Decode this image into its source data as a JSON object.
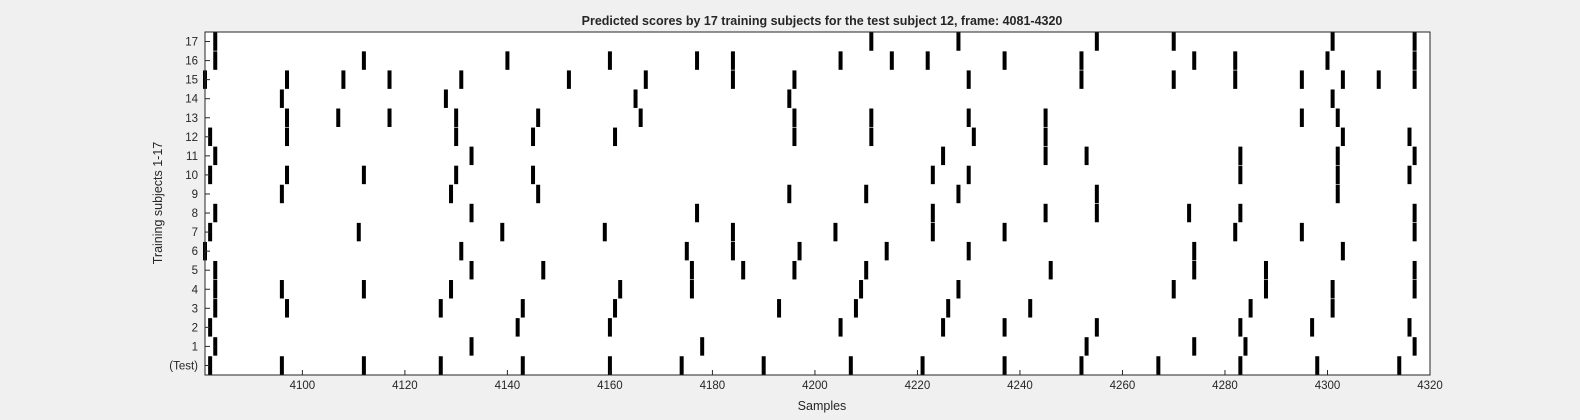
{
  "chart_data": {
    "type": "event_raster",
    "title": "Predicted scores by 17 training subjects for the test subject 12, frame: 4081-4320",
    "xlabel": "Samples",
    "ylabel": "Training subjects 1-17",
    "xlim": [
      4081,
      4320
    ],
    "xticks": [
      "4100",
      "4120",
      "4140",
      "4160",
      "4180",
      "4200",
      "4220",
      "4240",
      "4260",
      "4280",
      "4300",
      "4320"
    ],
    "row_labels": [
      "(Test)",
      "1",
      "2",
      "3",
      "4",
      "5",
      "6",
      "7",
      "8",
      "9",
      "10",
      "11",
      "12",
      "13",
      "14",
      "15",
      "16",
      "17"
    ],
    "grid": false,
    "series": [
      {
        "name": "(Test)",
        "x": [
          4082,
          4096,
          4112,
          4127,
          4143,
          4160,
          4174,
          4190,
          4207,
          4221,
          4237,
          4252,
          4267,
          4283,
          4298,
          4314
        ]
      },
      {
        "name": "1",
        "x": [
          4083,
          4133,
          4178,
          4253,
          4274,
          4284,
          4317
        ]
      },
      {
        "name": "2",
        "x": [
          4082,
          4142,
          4160,
          4205,
          4225,
          4237,
          4255,
          4283,
          4297,
          4316
        ]
      },
      {
        "name": "3",
        "x": [
          4083,
          4097,
          4127,
          4143,
          4161,
          4193,
          4208,
          4226,
          4242,
          4285,
          4301
        ]
      },
      {
        "name": "4",
        "x": [
          4083,
          4096,
          4112,
          4129,
          4162,
          4176,
          4209,
          4228,
          4270,
          4288,
          4301,
          4317
        ]
      },
      {
        "name": "5",
        "x": [
          4083,
          4133,
          4147,
          4176,
          4186,
          4196,
          4210,
          4246,
          4274,
          4288,
          4317
        ]
      },
      {
        "name": "6",
        "x": [
          4081,
          4131,
          4175,
          4184,
          4197,
          4214,
          4230,
          4274,
          4303
        ]
      },
      {
        "name": "7",
        "x": [
          4082,
          4111,
          4139,
          4159,
          4184,
          4204,
          4223,
          4237,
          4282,
          4295,
          4317
        ]
      },
      {
        "name": "8",
        "x": [
          4083,
          4133,
          4177,
          4223,
          4245,
          4255,
          4273,
          4283,
          4317
        ]
      },
      {
        "name": "9",
        "x": [
          4096,
          4129,
          4146,
          4195,
          4210,
          4228,
          4255,
          4302
        ]
      },
      {
        "name": "10",
        "x": [
          4082,
          4097,
          4112,
          4130,
          4145,
          4223,
          4230,
          4283,
          4302,
          4316
        ]
      },
      {
        "name": "11",
        "x": [
          4083,
          4133,
          4225,
          4245,
          4253,
          4283,
          4302,
          4317
        ]
      },
      {
        "name": "12",
        "x": [
          4082,
          4097,
          4130,
          4145,
          4161,
          4196,
          4211,
          4231,
          4245,
          4303,
          4316
        ]
      },
      {
        "name": "13",
        "x": [
          4097,
          4107,
          4117,
          4130,
          4146,
          4166,
          4196,
          4211,
          4230,
          4245,
          4295,
          4302
        ]
      },
      {
        "name": "14",
        "x": [
          4096,
          4128,
          4165,
          4195,
          4301
        ]
      },
      {
        "name": "15",
        "x": [
          4081,
          4097,
          4108,
          4117,
          4131,
          4152,
          4167,
          4184,
          4196,
          4230,
          4252,
          4270,
          4282,
          4295,
          4303,
          4310,
          4317
        ]
      },
      {
        "name": "16",
        "x": [
          4083,
          4112,
          4140,
          4160,
          4177,
          4184,
          4205,
          4215,
          4222,
          4237,
          4252,
          4274,
          4282,
          4300,
          4317
        ]
      },
      {
        "name": "17",
        "x": [
          4083,
          4211,
          4228,
          4255,
          4270,
          4301,
          4317
        ]
      }
    ],
    "colors": {
      "event": "#000000",
      "plot_bg": "#ffffff",
      "figure_bg": "#f0f0f0",
      "axis": "#262626"
    }
  }
}
